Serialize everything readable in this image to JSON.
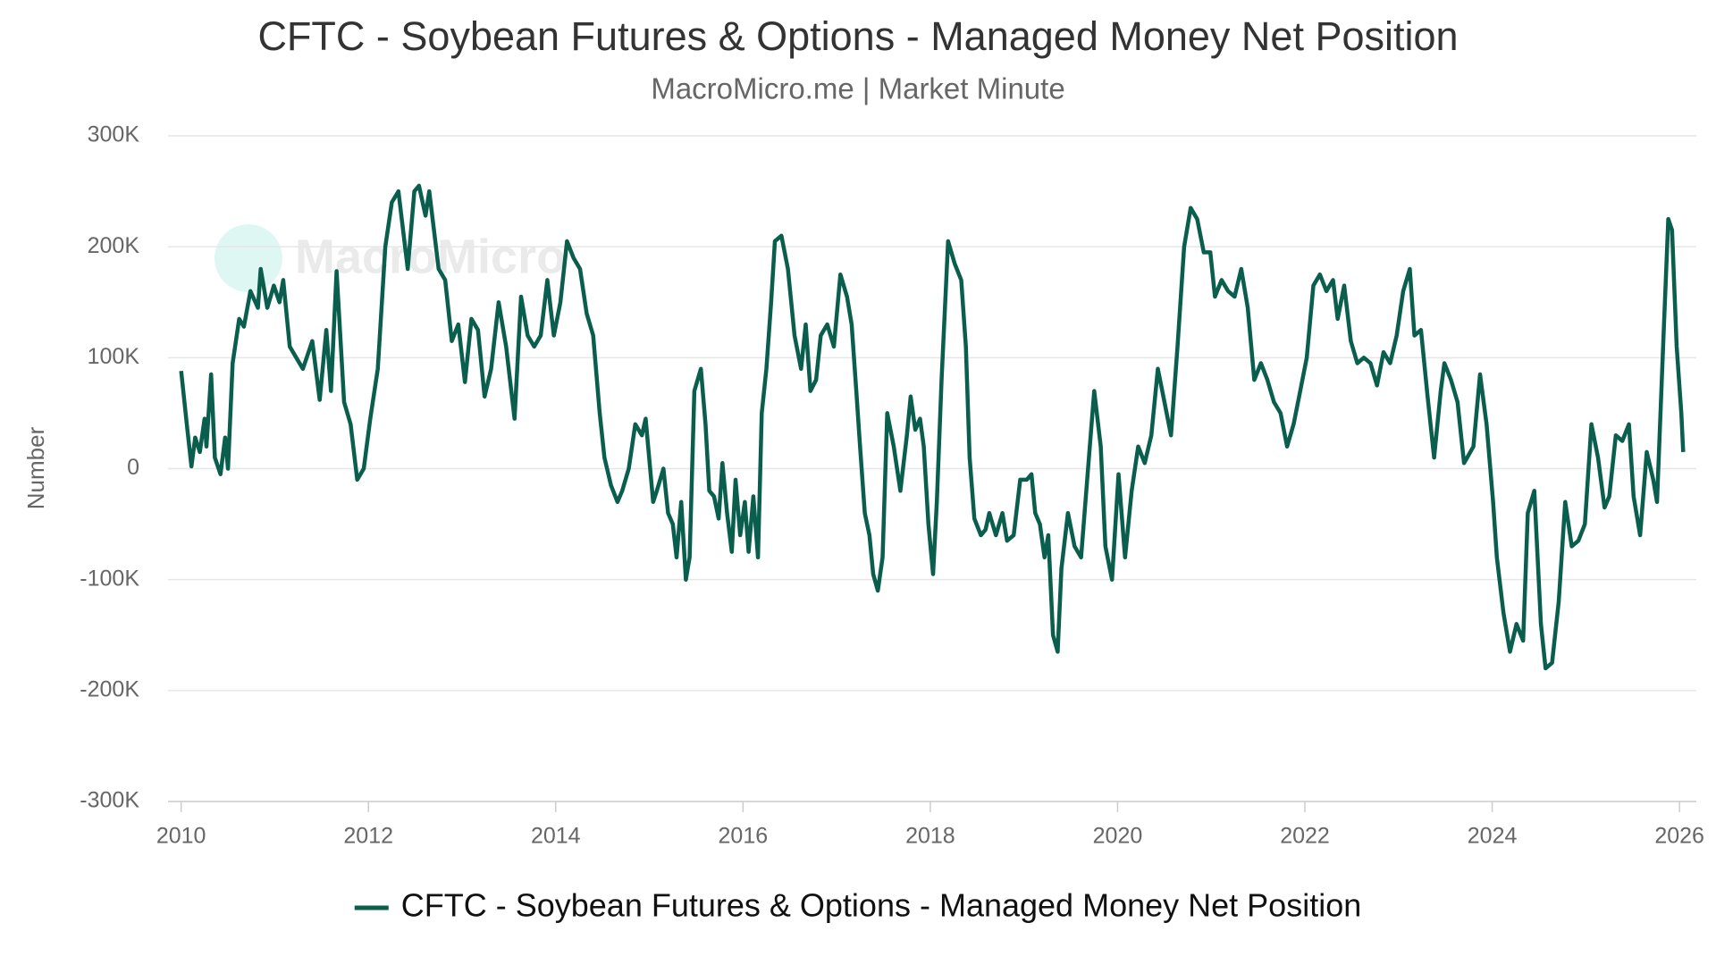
{
  "chart_data": {
    "type": "line",
    "title": "CFTC - Soybean Futures & Options - Managed Money Net Position",
    "subtitle": "MacroMicro.me | Market Minute",
    "watermark": "MacroMicro",
    "y_label": "Number",
    "legend": "bottom",
    "grid": true,
    "xlim": [
      2009.86,
      2026.18
    ],
    "xticks": [
      2010,
      2012,
      2014,
      2016,
      2018,
      2020,
      2022,
      2024,
      2026
    ],
    "ylim": [
      -300000,
      300000
    ],
    "yticks": [
      {
        "value": -300000,
        "label": "-300K"
      },
      {
        "value": -200000,
        "label": "-200K"
      },
      {
        "value": -100000,
        "label": "-100K"
      },
      0,
      {
        "value": 100000,
        "label": "100K"
      },
      {
        "value": 200000,
        "label": "200K"
      },
      {
        "value": 300000,
        "label": "300K"
      }
    ],
    "x": [
      2010.0,
      2010.06,
      2010.11,
      2010.15,
      2010.2,
      2010.25,
      2010.27,
      2010.32,
      2010.36,
      2010.42,
      2010.47,
      2010.5,
      2010.55,
      2010.62,
      2010.67,
      2010.74,
      2010.82,
      2010.85,
      2010.92,
      2010.99,
      2011.05,
      2011.09,
      2011.16,
      2011.23,
      2011.3,
      2011.4,
      2011.48,
      2011.55,
      2011.6,
      2011.66,
      2011.74,
      2011.81,
      2011.88,
      2011.95,
      2012.02,
      2012.1,
      2012.18,
      2012.25,
      2012.32,
      2012.42,
      2012.49,
      2012.54,
      2012.61,
      2012.65,
      2012.75,
      2012.82,
      2012.89,
      2012.96,
      2013.03,
      2013.1,
      2013.17,
      2013.24,
      2013.31,
      2013.39,
      2013.47,
      2013.56,
      2013.63,
      2013.7,
      2013.77,
      2013.84,
      2013.91,
      2013.98,
      2014.05,
      2014.12,
      2014.19,
      2014.26,
      2014.33,
      2014.4,
      2014.47,
      2014.52,
      2014.59,
      2014.66,
      2014.71,
      2014.78,
      2014.85,
      2014.92,
      2014.96,
      2015.04,
      2015.08,
      2015.15,
      2015.2,
      2015.25,
      2015.29,
      2015.34,
      2015.39,
      2015.43,
      2015.48,
      2015.55,
      2015.6,
      2015.64,
      2015.69,
      2015.74,
      2015.78,
      2015.83,
      2015.88,
      2015.92,
      2015.97,
      2016.02,
      2016.06,
      2016.11,
      2016.16,
      2016.2,
      2016.25,
      2016.3,
      2016.34,
      2016.41,
      2016.48,
      2016.55,
      2016.62,
      2016.67,
      2016.72,
      2016.78,
      2016.83,
      2016.9,
      2016.97,
      2017.04,
      2017.11,
      2017.16,
      2017.21,
      2017.25,
      2017.3,
      2017.35,
      2017.39,
      2017.44,
      2017.49,
      2017.54,
      2017.61,
      2017.68,
      2017.75,
      2017.79,
      2017.84,
      2017.89,
      2017.93,
      2017.98,
      2018.03,
      2018.07,
      2018.12,
      2018.19,
      2018.26,
      2018.33,
      2018.38,
      2018.42,
      2018.47,
      2018.54,
      2018.59,
      2018.63,
      2018.7,
      2018.77,
      2018.82,
      2018.89,
      2018.96,
      2019.03,
      2019.08,
      2019.12,
      2019.17,
      2019.22,
      2019.26,
      2019.31,
      2019.36,
      2019.4,
      2019.47,
      2019.54,
      2019.61,
      2019.68,
      2019.75,
      2019.82,
      2019.87,
      2019.94,
      2020.01,
      2020.08,
      2020.15,
      2020.22,
      2020.29,
      2020.36,
      2020.43,
      2020.5,
      2020.57,
      2020.64,
      2020.71,
      2020.78,
      2020.85,
      2020.92,
      2020.99,
      2021.04,
      2021.11,
      2021.18,
      2021.25,
      2021.32,
      2021.39,
      2021.46,
      2021.53,
      2021.6,
      2021.67,
      2021.74,
      2021.81,
      2021.88,
      2021.95,
      2022.02,
      2022.09,
      2022.16,
      2022.23,
      2022.3,
      2022.35,
      2022.42,
      2022.49,
      2022.56,
      2022.63,
      2022.7,
      2022.77,
      2022.84,
      2022.91,
      2022.98,
      2023.05,
      2023.12,
      2023.17,
      2023.24,
      2023.31,
      2023.38,
      2023.45,
      2023.49,
      2023.56,
      2023.63,
      2023.7,
      2023.8,
      2023.87,
      2023.94,
      2024.01,
      2024.05,
      2024.12,
      2024.19,
      2024.26,
      2024.33,
      2024.38,
      2024.45,
      2024.52,
      2024.57,
      2024.64,
      2024.71,
      2024.78,
      2024.85,
      2024.92,
      2024.99,
      2025.06,
      2025.13,
      2025.2,
      2025.25,
      2025.32,
      2025.39,
      2025.46,
      2025.51,
      2025.58,
      2025.65,
      2025.72,
      2025.76,
      2025.83,
      2025.88,
      2025.92,
      2025.97,
      2026.02,
      2026.04
    ],
    "series": [
      {
        "name": "CFTC - Soybean Futures & Options - Managed Money Net Position",
        "color": "#0a5e4d",
        "values": [
          88000,
          40000,
          2000,
          28000,
          15000,
          45000,
          20000,
          85000,
          10000,
          -5000,
          28000,
          0,
          95000,
          135000,
          128000,
          160000,
          145000,
          180000,
          145000,
          165000,
          150000,
          170000,
          110000,
          100000,
          90000,
          115000,
          62000,
          125000,
          70000,
          178000,
          60000,
          40000,
          -10000,
          0,
          45000,
          90000,
          200000,
          240000,
          250000,
          180000,
          250000,
          255000,
          228000,
          250000,
          180000,
          170000,
          115000,
          130000,
          78000,
          135000,
          125000,
          65000,
          90000,
          150000,
          110000,
          45000,
          155000,
          120000,
          110000,
          120000,
          170000,
          120000,
          150000,
          205000,
          190000,
          180000,
          140000,
          120000,
          50000,
          10000,
          -15000,
          -30000,
          -20000,
          0,
          40000,
          30000,
          45000,
          -30000,
          -20000,
          0,
          -40000,
          -50000,
          -80000,
          -30000,
          -100000,
          -80000,
          70000,
          90000,
          40000,
          -20000,
          -25000,
          -45000,
          5000,
          -40000,
          -75000,
          -10000,
          -60000,
          -30000,
          -75000,
          -25000,
          -80000,
          50000,
          90000,
          150000,
          205000,
          210000,
          180000,
          120000,
          90000,
          130000,
          70000,
          80000,
          120000,
          130000,
          110000,
          175000,
          155000,
          130000,
          70000,
          20000,
          -40000,
          -60000,
          -95000,
          -110000,
          -80000,
          50000,
          20000,
          -20000,
          30000,
          65000,
          35000,
          45000,
          20000,
          -50000,
          -95000,
          -30000,
          80000,
          205000,
          185000,
          170000,
          110000,
          10000,
          -45000,
          -60000,
          -55000,
          -40000,
          -60000,
          -40000,
          -65000,
          -60000,
          -10000,
          -10000,
          -5000,
          -40000,
          -50000,
          -80000,
          -60000,
          -150000,
          -165000,
          -90000,
          -40000,
          -70000,
          -80000,
          -5000,
          70000,
          20000,
          -70000,
          -100000,
          -5000,
          -80000,
          -20000,
          20000,
          5000,
          30000,
          90000,
          60000,
          30000,
          110000,
          200000,
          235000,
          225000,
          195000,
          195000,
          155000,
          170000,
          160000,
          155000,
          180000,
          145000,
          80000,
          95000,
          80000,
          60000,
          50000,
          20000,
          40000,
          70000,
          100000,
          165000,
          175000,
          160000,
          170000,
          135000,
          165000,
          115000,
          95000,
          100000,
          95000,
          75000,
          105000,
          95000,
          120000,
          160000,
          180000,
          120000,
          125000,
          65000,
          10000,
          70000,
          95000,
          80000,
          60000,
          5000,
          20000,
          85000,
          40000,
          -30000,
          -80000,
          -130000,
          -165000,
          -140000,
          -155000,
          -40000,
          -20000,
          -140000,
          -180000,
          -175000,
          -120000,
          -30000,
          -70000,
          -65000,
          -50000,
          40000,
          10000,
          -35000,
          -25000,
          30000,
          25000,
          40000,
          -25000,
          -60000,
          15000,
          -10000,
          -30000,
          120000,
          225000,
          215000,
          110000,
          50000,
          15000
        ]
      }
    ]
  }
}
